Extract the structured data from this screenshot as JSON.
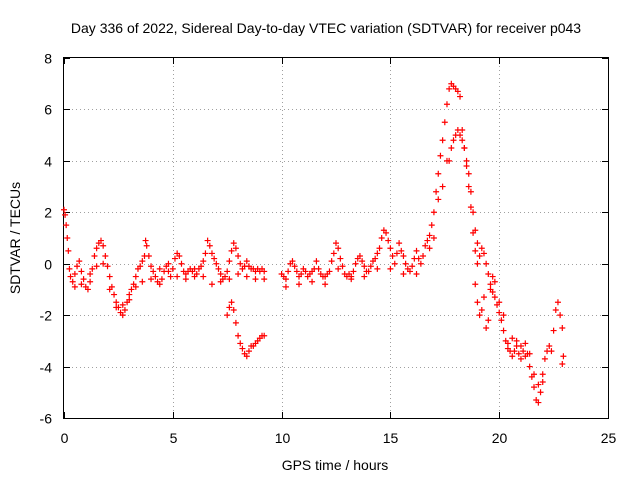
{
  "chart_data": {
    "type": "scatter",
    "title": "Day 336 of 2022, Sidereal Day-to-day VTEC variation (SDTVAR) for receiver p043",
    "xlabel": "GPS time / hours",
    "ylabel": "SDTVAR / TECUs",
    "xlim": [
      0,
      25
    ],
    "ylim": [
      -6,
      8
    ],
    "xticks": [
      "0",
      "5",
      "10",
      "15",
      "20",
      "25"
    ],
    "yticks": [
      "-6",
      "-4",
      "-2",
      "0",
      "2",
      "4",
      "6",
      "8"
    ],
    "grid": true,
    "marker": "plus",
    "series_color": "#ff0000",
    "series": [
      {
        "name": "p043",
        "points": [
          [
            0.0,
            2.1
          ],
          [
            0.05,
            1.9
          ],
          [
            0.1,
            1.5
          ],
          [
            0.15,
            1.0
          ],
          [
            0.2,
            0.5
          ],
          [
            0.25,
            -0.2
          ],
          [
            0.3,
            -0.5
          ],
          [
            0.4,
            -0.7
          ],
          [
            0.5,
            -0.4
          ],
          [
            0.6,
            -0.1
          ],
          [
            0.7,
            0.1
          ],
          [
            0.8,
            -0.3
          ],
          [
            0.9,
            -0.6
          ],
          [
            1.0,
            -0.9
          ],
          [
            1.1,
            -1.0
          ],
          [
            1.2,
            -0.7
          ],
          [
            1.3,
            -0.2
          ],
          [
            1.4,
            0.3
          ],
          [
            1.5,
            0.6
          ],
          [
            1.6,
            0.8
          ],
          [
            1.7,
            0.9
          ],
          [
            1.8,
            0.7
          ],
          [
            1.9,
            0.3
          ],
          [
            2.0,
            -0.1
          ],
          [
            2.1,
            -0.5
          ],
          [
            2.2,
            -0.9
          ],
          [
            2.3,
            -1.2
          ],
          [
            2.4,
            -1.5
          ],
          [
            2.5,
            -1.7
          ],
          [
            2.6,
            -1.9
          ],
          [
            2.7,
            -2.0
          ],
          [
            2.8,
            -1.8
          ],
          [
            2.9,
            -1.5
          ],
          [
            3.0,
            -1.2
          ],
          [
            3.1,
            -1.0
          ],
          [
            3.2,
            -0.8
          ],
          [
            3.3,
            -0.5
          ],
          [
            3.4,
            -0.2
          ],
          [
            3.5,
            -0.1
          ],
          [
            3.6,
            0.1
          ],
          [
            3.7,
            0.3
          ],
          [
            3.75,
            0.9
          ],
          [
            3.8,
            0.7
          ],
          [
            3.9,
            0.3
          ],
          [
            4.0,
            -0.1
          ],
          [
            4.1,
            -0.3
          ],
          [
            4.2,
            -0.5
          ],
          [
            4.3,
            -0.7
          ],
          [
            4.4,
            -0.8
          ],
          [
            4.5,
            -0.6
          ],
          [
            4.6,
            -0.3
          ],
          [
            4.7,
            -0.1
          ],
          [
            4.8,
            -0.3
          ],
          [
            4.9,
            -0.5
          ],
          [
            5.0,
            -0.2
          ],
          [
            5.1,
            0.2
          ],
          [
            5.2,
            0.4
          ],
          [
            5.3,
            0.3
          ],
          [
            5.4,
            0.0
          ],
          [
            5.5,
            -0.3
          ],
          [
            5.6,
            -0.4
          ],
          [
            5.7,
            -0.3
          ],
          [
            5.8,
            -0.2
          ],
          [
            5.9,
            -0.3
          ],
          [
            6.0,
            -0.5
          ],
          [
            6.1,
            -0.4
          ],
          [
            6.2,
            -0.2
          ],
          [
            6.3,
            -0.1
          ],
          [
            6.4,
            0.1
          ],
          [
            6.5,
            0.4
          ],
          [
            6.6,
            0.9
          ],
          [
            6.7,
            0.7
          ],
          [
            6.8,
            0.4
          ],
          [
            6.9,
            0.2
          ],
          [
            7.0,
            0.0
          ],
          [
            7.1,
            -0.2
          ],
          [
            7.2,
            -0.4
          ],
          [
            7.3,
            -0.6
          ],
          [
            7.4,
            -0.5
          ],
          [
            7.5,
            -0.3
          ],
          [
            7.6,
            0.1
          ],
          [
            7.7,
            0.5
          ],
          [
            7.8,
            0.8
          ],
          [
            7.9,
            0.6
          ],
          [
            8.0,
            0.3
          ],
          [
            8.1,
            0.0
          ],
          [
            8.2,
            -0.2
          ],
          [
            8.3,
            -0.1
          ],
          [
            8.4,
            0.1
          ],
          [
            8.5,
            -0.1
          ],
          [
            8.6,
            -0.2
          ],
          [
            8.7,
            -0.2
          ],
          [
            8.8,
            -0.3
          ],
          [
            8.9,
            -0.2
          ],
          [
            9.0,
            -0.3
          ],
          [
            9.1,
            -0.2
          ],
          [
            9.2,
            -0.3
          ],
          [
            7.5,
            -2.0
          ],
          [
            7.6,
            -1.7
          ],
          [
            7.7,
            -1.5
          ],
          [
            7.8,
            -1.8
          ],
          [
            7.9,
            -2.3
          ],
          [
            8.0,
            -2.8
          ],
          [
            8.1,
            -3.1
          ],
          [
            8.2,
            -3.3
          ],
          [
            8.3,
            -3.5
          ],
          [
            8.4,
            -3.6
          ],
          [
            8.5,
            -3.4
          ],
          [
            8.6,
            -3.2
          ],
          [
            8.7,
            -3.2
          ],
          [
            8.8,
            -3.1
          ],
          [
            8.9,
            -3.0
          ],
          [
            9.0,
            -2.9
          ],
          [
            9.1,
            -2.8
          ],
          [
            9.2,
            -2.8
          ],
          [
            10.0,
            -0.4
          ],
          [
            10.1,
            -0.5
          ],
          [
            10.2,
            -0.6
          ],
          [
            10.3,
            -0.3
          ],
          [
            10.4,
            0.0
          ],
          [
            10.5,
            0.1
          ],
          [
            10.6,
            -0.1
          ],
          [
            10.7,
            -0.3
          ],
          [
            10.8,
            -0.5
          ],
          [
            10.9,
            -0.4
          ],
          [
            11.0,
            -0.2
          ],
          [
            11.1,
            -0.3
          ],
          [
            11.2,
            -0.5
          ],
          [
            11.3,
            -0.4
          ],
          [
            11.4,
            -0.3
          ],
          [
            11.5,
            -0.2
          ],
          [
            11.6,
            0.1
          ],
          [
            11.7,
            -0.2
          ],
          [
            11.8,
            -0.4
          ],
          [
            11.9,
            -0.5
          ],
          [
            12.0,
            -0.5
          ],
          [
            12.1,
            -0.4
          ],
          [
            12.2,
            -0.3
          ],
          [
            12.3,
            0.1
          ],
          [
            12.4,
            0.4
          ],
          [
            12.5,
            0.8
          ],
          [
            12.6,
            0.6
          ],
          [
            12.7,
            0.2
          ],
          [
            12.8,
            -0.1
          ],
          [
            12.9,
            -0.4
          ],
          [
            13.0,
            -0.5
          ],
          [
            13.1,
            -0.4
          ],
          [
            13.2,
            -0.5
          ],
          [
            13.3,
            -0.3
          ],
          [
            13.4,
            0.0
          ],
          [
            13.5,
            0.2
          ],
          [
            13.6,
            0.3
          ],
          [
            13.7,
            0.1
          ],
          [
            13.8,
            -0.1
          ],
          [
            13.9,
            -0.3
          ],
          [
            14.0,
            -0.3
          ],
          [
            14.1,
            -0.1
          ],
          [
            14.2,
            0.1
          ],
          [
            14.3,
            0.2
          ],
          [
            14.4,
            0.4
          ],
          [
            14.5,
            0.6
          ],
          [
            14.6,
            1.0
          ],
          [
            14.7,
            1.3
          ],
          [
            14.8,
            1.2
          ],
          [
            14.9,
            0.9
          ],
          [
            15.0,
            0.6
          ],
          [
            15.1,
            0.3
          ],
          [
            15.2,
            0.0
          ],
          [
            15.3,
            0.4
          ],
          [
            15.4,
            0.8
          ],
          [
            15.5,
            0.5
          ],
          [
            15.6,
            0.3
          ],
          [
            15.7,
            0.0
          ],
          [
            15.8,
            -0.2
          ],
          [
            15.9,
            -0.3
          ],
          [
            16.0,
            -0.1
          ],
          [
            16.1,
            0.2
          ],
          [
            16.2,
            0.5
          ],
          [
            16.3,
            0.2
          ],
          [
            16.4,
            0.0
          ],
          [
            16.5,
            0.3
          ],
          [
            16.6,
            0.7
          ],
          [
            16.7,
            0.9
          ],
          [
            16.8,
            1.1
          ],
          [
            16.9,
            1.5
          ],
          [
            17.0,
            2.0
          ],
          [
            17.1,
            2.8
          ],
          [
            17.2,
            3.5
          ],
          [
            17.3,
            4.2
          ],
          [
            17.4,
            4.8
          ],
          [
            17.5,
            5.5
          ],
          [
            17.6,
            6.2
          ],
          [
            17.7,
            6.8
          ],
          [
            17.8,
            7.0
          ],
          [
            17.9,
            6.9
          ],
          [
            18.0,
            6.8
          ],
          [
            18.1,
            6.7
          ],
          [
            18.2,
            6.5
          ],
          [
            18.3,
            5.2
          ],
          [
            18.4,
            4.5
          ],
          [
            18.5,
            3.8
          ],
          [
            18.6,
            3.0
          ],
          [
            18.7,
            2.2
          ],
          [
            18.8,
            1.2
          ],
          [
            18.9,
            0.5
          ],
          [
            19.0,
            0.0
          ],
          [
            19.1,
            0.3
          ],
          [
            19.2,
            0.6
          ],
          [
            19.3,
            0.4
          ],
          [
            19.4,
            0.0
          ],
          [
            19.5,
            -0.4
          ],
          [
            19.6,
            -0.8
          ],
          [
            19.7,
            -1.1
          ],
          [
            19.8,
            -1.3
          ],
          [
            19.9,
            -1.6
          ],
          [
            20.0,
            -1.9
          ],
          [
            20.1,
            -2.2
          ],
          [
            20.2,
            -2.6
          ],
          [
            20.3,
            -3.0
          ],
          [
            20.4,
            -3.3
          ],
          [
            20.5,
            -3.4
          ],
          [
            20.6,
            -3.6
          ],
          [
            20.7,
            -3.4
          ],
          [
            20.8,
            -3.2
          ],
          [
            20.9,
            -3.5
          ],
          [
            21.0,
            -3.7
          ],
          [
            21.1,
            -3.4
          ],
          [
            21.2,
            -3.1
          ],
          [
            21.3,
            -3.5
          ],
          [
            21.4,
            -4.0
          ],
          [
            21.5,
            -4.4
          ],
          [
            21.6,
            -4.8
          ],
          [
            21.7,
            -5.3
          ],
          [
            21.8,
            -5.4
          ],
          [
            21.9,
            -5.0
          ],
          [
            22.0,
            -4.3
          ],
          [
            22.1,
            -3.7
          ],
          [
            22.2,
            -3.4
          ],
          [
            22.3,
            -3.2
          ],
          [
            22.4,
            -3.4
          ],
          [
            22.5,
            -2.6
          ],
          [
            22.6,
            -1.8
          ],
          [
            22.7,
            -1.5
          ],
          [
            22.8,
            -2.0
          ],
          [
            22.9,
            -2.5
          ],
          [
            22.95,
            -3.6
          ],
          [
            22.9,
            -3.9
          ],
          [
            17.7,
            4.0
          ],
          [
            17.8,
            4.5
          ],
          [
            17.9,
            4.8
          ],
          [
            18.0,
            5.0
          ],
          [
            18.1,
            5.2
          ],
          [
            18.2,
            5.0
          ],
          [
            18.3,
            4.8
          ],
          [
            18.4,
            4.5
          ],
          [
            18.5,
            4.0
          ],
          [
            18.6,
            3.5
          ],
          [
            18.7,
            2.8
          ],
          [
            18.8,
            2.0
          ],
          [
            18.9,
            1.3
          ],
          [
            19.0,
            0.8
          ],
          [
            18.9,
            -0.8
          ],
          [
            19.0,
            -1.5
          ],
          [
            19.1,
            -2.0
          ],
          [
            19.2,
            -1.8
          ],
          [
            19.3,
            -1.3
          ],
          [
            19.4,
            -2.5
          ],
          [
            19.5,
            -2.2
          ],
          [
            19.6,
            -1.0
          ],
          [
            19.7,
            -0.5
          ],
          [
            19.8,
            -0.7
          ],
          [
            20.0,
            -1.5
          ],
          [
            20.2,
            -2.0
          ],
          [
            20.4,
            -3.1
          ],
          [
            20.6,
            -2.9
          ],
          [
            20.8,
            -3.0
          ],
          [
            21.0,
            -3.2
          ],
          [
            21.2,
            -3.6
          ],
          [
            21.4,
            -3.5
          ],
          [
            21.6,
            -4.3
          ],
          [
            21.8,
            -4.7
          ],
          [
            22.0,
            -4.6
          ],
          [
            0.5,
            -0.9
          ],
          [
            0.8,
            -0.8
          ],
          [
            1.2,
            -0.4
          ],
          [
            1.5,
            -0.1
          ],
          [
            1.8,
            0.0
          ],
          [
            2.1,
            -1.0
          ],
          [
            2.4,
            -1.7
          ],
          [
            2.7,
            -1.6
          ],
          [
            3.0,
            -1.4
          ],
          [
            3.3,
            -0.9
          ],
          [
            3.6,
            -0.7
          ],
          [
            4.0,
            -0.6
          ],
          [
            4.4,
            -0.2
          ],
          [
            4.8,
            0.0
          ],
          [
            5.2,
            -0.5
          ],
          [
            5.6,
            -0.6
          ],
          [
            6.0,
            -0.2
          ],
          [
            6.4,
            -0.5
          ],
          [
            6.8,
            -0.8
          ],
          [
            7.2,
            -0.7
          ],
          [
            7.6,
            -0.6
          ],
          [
            8.0,
            -0.4
          ],
          [
            8.4,
            -0.5
          ],
          [
            8.8,
            -0.6
          ],
          [
            9.2,
            -0.6
          ],
          [
            10.2,
            -0.9
          ],
          [
            10.8,
            -0.8
          ],
          [
            11.4,
            -0.7
          ],
          [
            12.0,
            -0.8
          ],
          [
            12.6,
            -0.2
          ],
          [
            13.2,
            -0.6
          ],
          [
            13.8,
            -0.5
          ],
          [
            14.4,
            -0.2
          ],
          [
            15.0,
            -0.2
          ],
          [
            15.6,
            -0.4
          ],
          [
            16.2,
            -0.4
          ],
          [
            16.8,
            0.6
          ],
          [
            17.0,
            1.0
          ],
          [
            17.2,
            2.5
          ],
          [
            17.4,
            3.0
          ],
          [
            17.6,
            4.0
          ]
        ]
      }
    ]
  }
}
